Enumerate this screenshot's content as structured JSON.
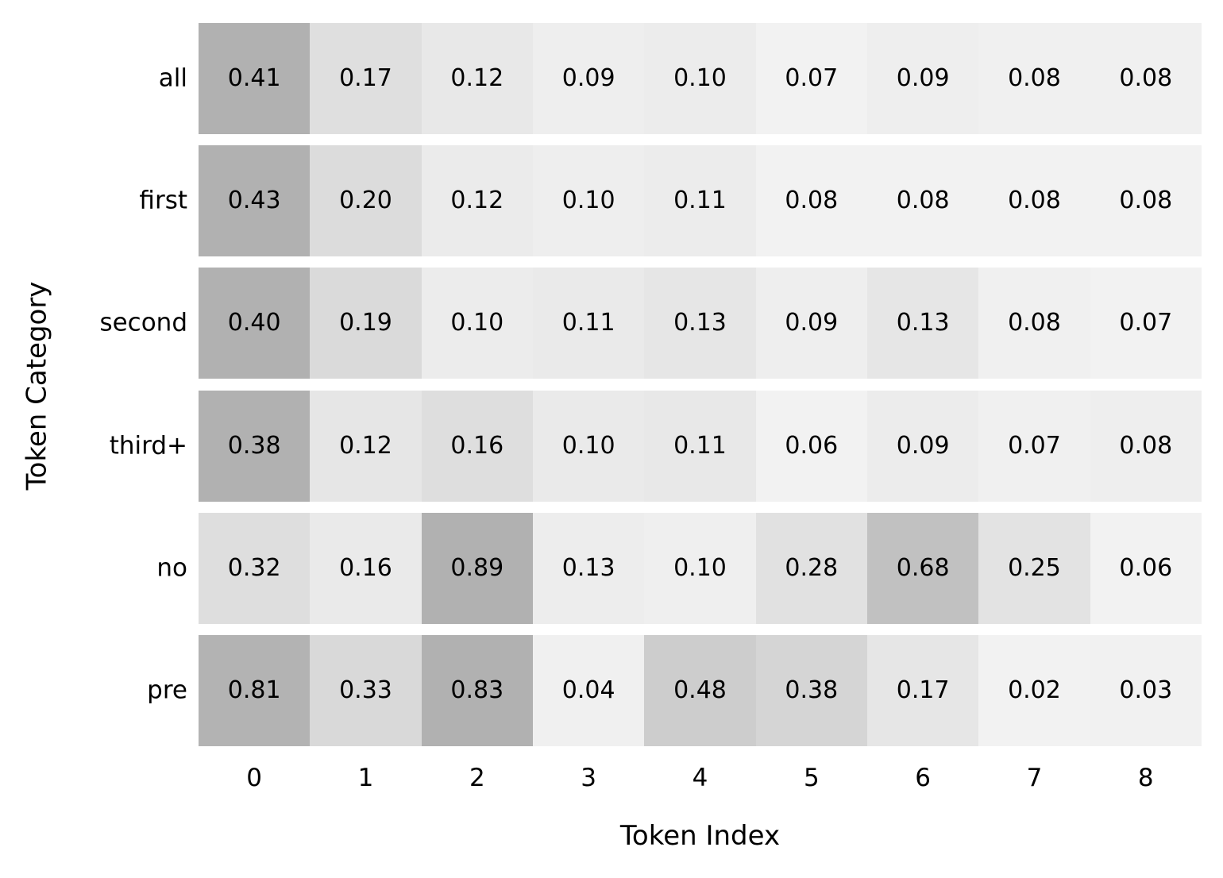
{
  "chart_data": {
    "type": "heatmap",
    "xlabel": "Token Index",
    "ylabel": "Token Category",
    "x_ticks": [
      "0",
      "1",
      "2",
      "3",
      "4",
      "5",
      "6",
      "7",
      "8"
    ],
    "categories": [
      "all",
      "first",
      "second",
      "third+",
      "no",
      "pre"
    ],
    "series": [
      {
        "name": "all",
        "values": [
          0.41,
          0.17,
          0.12,
          0.09,
          0.1,
          0.07,
          0.09,
          0.08,
          0.08
        ]
      },
      {
        "name": "first",
        "values": [
          0.43,
          0.2,
          0.12,
          0.1,
          0.11,
          0.08,
          0.08,
          0.08,
          0.08
        ]
      },
      {
        "name": "second",
        "values": [
          0.4,
          0.19,
          0.1,
          0.11,
          0.13,
          0.09,
          0.13,
          0.08,
          0.07
        ]
      },
      {
        "name": "third+",
        "values": [
          0.38,
          0.12,
          0.16,
          0.1,
          0.11,
          0.06,
          0.09,
          0.07,
          0.08
        ]
      },
      {
        "name": "no",
        "values": [
          0.32,
          0.16,
          0.89,
          0.13,
          0.1,
          0.28,
          0.68,
          0.25,
          0.06
        ]
      },
      {
        "name": "pre",
        "values": [
          0.81,
          0.33,
          0.83,
          0.04,
          0.48,
          0.38,
          0.17,
          0.02,
          0.03
        ]
      }
    ],
    "value_decimals": 2,
    "annotations_shown": true,
    "legend": "none",
    "grid": "off",
    "layout": {
      "normalization": "per-row-min-max",
      "colormap_min_color": "#f2f2f2",
      "colormap_max_color": "#b1b1b1",
      "row_gap_color": "#ffffff",
      "text_color": "#000000",
      "background_color": "#ffffff"
    }
  }
}
